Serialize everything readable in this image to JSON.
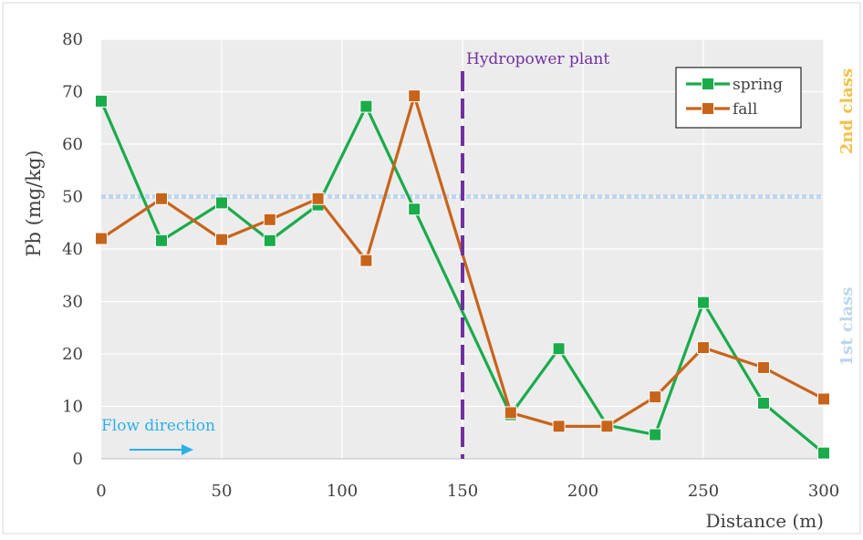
{
  "chart_data": {
    "type": "line",
    "title": "",
    "xlabel": "Distance (m)",
    "ylabel": "Pb (mg/kg)",
    "xlim": [
      0,
      300
    ],
    "ylim": [
      0,
      80
    ],
    "x_ticks": [
      0,
      50,
      100,
      150,
      200,
      250,
      300
    ],
    "y_ticks": [
      0,
      10,
      20,
      30,
      40,
      50,
      60,
      70,
      80
    ],
    "grid": true,
    "legend_position": "top-right",
    "series": [
      {
        "name": "spring",
        "color": "#1aab4b",
        "x": [
          0,
          25,
          50,
          70,
          90,
          110,
          130,
          170,
          190,
          210,
          230,
          250,
          275,
          300
        ],
        "y": [
          68.2,
          41.6,
          48.8,
          41.6,
          48.4,
          67.2,
          47.6,
          8.4,
          21.0,
          6.4,
          4.6,
          29.8,
          10.6,
          1.1
        ]
      },
      {
        "name": "fall",
        "color": "#c8641a",
        "x": [
          0,
          25,
          50,
          70,
          90,
          110,
          130,
          170,
          190,
          210,
          230,
          250,
          275,
          300
        ],
        "y": [
          42.0,
          49.6,
          41.8,
          45.6,
          49.6,
          37.8,
          69.2,
          8.8,
          6.2,
          6.2,
          11.8,
          21.2,
          17.4,
          11.4
        ]
      }
    ],
    "annotations": {
      "plant_label": "Hydropower plant",
      "plant_x": 150,
      "plant_color": "#7030a0",
      "threshold_y": 50,
      "threshold_color": "#bdd7ee",
      "flow_label": "Flow direction",
      "flow_color": "#2ab0e8",
      "class_2_label": "2nd class",
      "class_2_color": "#f2c14e",
      "class_1_label": "1st class",
      "class_1_color": "#bdd7ee"
    }
  }
}
